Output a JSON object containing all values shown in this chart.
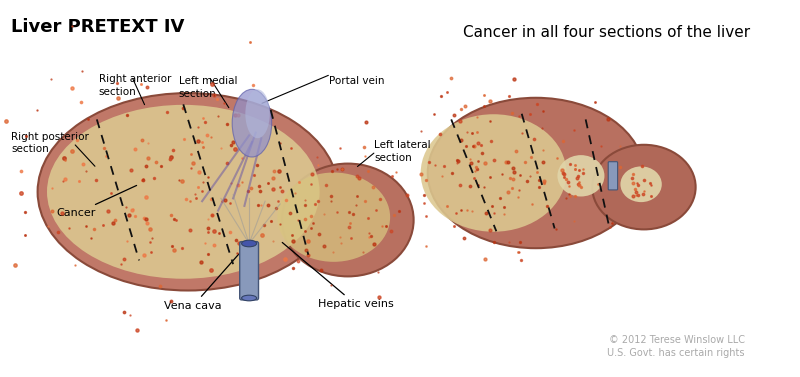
{
  "title": "Liver PRETEXT IV",
  "title_fontsize": 13,
  "title_fontweight": "bold",
  "subtitle": "Cancer in all four sections of the liver",
  "subtitle_fontsize": 11,
  "copyright": "© 2012 Terese Winslow LLC\nU.S. Govt. has certain rights",
  "copyright_fontsize": 7,
  "background_color": "#ffffff",
  "liver_fill": "#c07868",
  "liver_edge": "#8a4a3a",
  "cancer_fill": "#dcc890",
  "dashed_color": "#111111",
  "vein_color": "#8899bb",
  "vein_edge": "#445577",
  "annotation_color": "#000000",
  "spot_fill": "#e0d4a8",
  "label_vena_cava": "Vena cava",
  "label_hepatic_veins": "Hepatic veins",
  "label_cancer": "Cancer",
  "label_right_posterior": "Right posterior\nsection",
  "label_right_anterior": "Right anterior\nsection",
  "label_left_medial": "Left medial\nsection",
  "label_left_lateral": "Left lateral\nsection",
  "label_portal_vein": "Portal vein"
}
